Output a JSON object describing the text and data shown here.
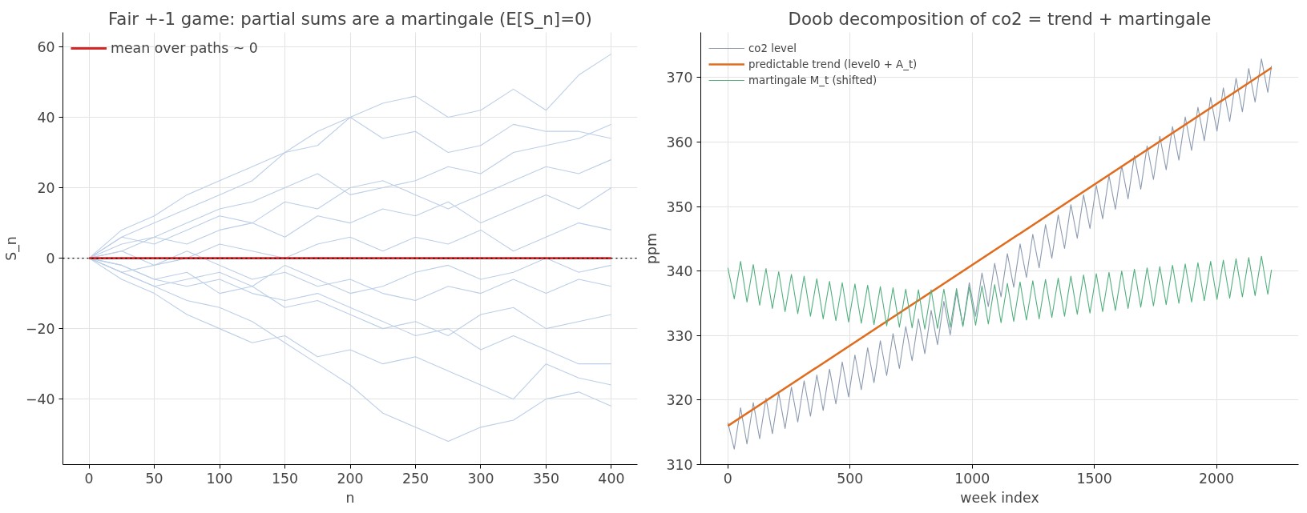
{
  "chart_data": [
    {
      "type": "line",
      "title": "Fair +-1 game: partial sums are a martingale (E[S_n]=0)",
      "xlabel": "n",
      "ylabel": "S_n",
      "x": [
        0,
        25,
        50,
        75,
        100,
        125,
        150,
        175,
        200,
        225,
        250,
        275,
        300,
        325,
        350,
        375,
        400
      ],
      "xlim": [
        -20,
        420
      ],
      "ylim": [
        -58.6,
        64.1
      ],
      "xticks": [
        0,
        50,
        100,
        150,
        200,
        250,
        300,
        350,
        400
      ],
      "yticks": [
        -40,
        -20,
        0,
        20,
        40,
        60
      ],
      "grid": true,
      "legend": "top left",
      "ref_lines": [
        {
          "axis": "y",
          "value": 0,
          "color": "#000000",
          "line_style": "dotted"
        }
      ],
      "series": [
        {
          "color": "#bccfe8",
          "values": [
            0,
            6,
            10,
            14,
            18,
            22,
            30,
            36,
            40,
            44,
            46,
            40,
            42,
            48,
            42,
            52,
            58
          ]
        },
        {
          "color": "#bccfe8",
          "values": [
            0,
            -4,
            -8,
            -12,
            -14,
            -18,
            -24,
            -30,
            -36,
            -44,
            -48,
            -52,
            -48,
            -46,
            -40,
            -38,
            -42
          ]
        },
        {
          "color": "#bccfe8",
          "values": [
            0,
            8,
            12,
            18,
            22,
            26,
            30,
            32,
            40,
            34,
            36,
            30,
            32,
            38,
            36,
            36,
            34
          ]
        },
        {
          "color": "#bccfe8",
          "values": [
            0,
            -6,
            -10,
            -16,
            -20,
            -24,
            -22,
            -28,
            -26,
            -30,
            -28,
            -32,
            -36,
            -40,
            -30,
            -34,
            -36
          ]
        },
        {
          "color": "#bccfe8",
          "values": [
            0,
            4,
            6,
            10,
            14,
            16,
            20,
            24,
            18,
            20,
            22,
            26,
            24,
            30,
            32,
            34,
            38
          ]
        },
        {
          "color": "#bccfe8",
          "values": [
            0,
            -2,
            -6,
            -4,
            -10,
            -8,
            -14,
            -12,
            -16,
            -20,
            -18,
            -22,
            -16,
            -14,
            -20,
            -18,
            -16
          ]
        },
        {
          "color": "#bccfe8",
          "values": [
            0,
            2,
            6,
            4,
            8,
            10,
            6,
            12,
            10,
            14,
            12,
            16,
            10,
            14,
            18,
            14,
            20
          ]
        },
        {
          "color": "#bccfe8",
          "values": [
            0,
            -4,
            -2,
            2,
            -2,
            -6,
            -4,
            -8,
            -6,
            -10,
            -12,
            -8,
            -10,
            -6,
            -10,
            -6,
            -8
          ]
        },
        {
          "color": "#bccfe8",
          "values": [
            0,
            2,
            -2,
            0,
            4,
            2,
            0,
            4,
            6,
            2,
            6,
            4,
            8,
            2,
            6,
            10,
            8
          ]
        },
        {
          "color": "#bccfe8",
          "values": [
            0,
            -2,
            -6,
            -8,
            -6,
            -10,
            -12,
            -10,
            -14,
            -18,
            -22,
            -20,
            -26,
            -22,
            -26,
            -30,
            -30
          ]
        },
        {
          "color": "#bccfe8",
          "values": [
            0,
            6,
            4,
            8,
            12,
            10,
            16,
            14,
            20,
            22,
            18,
            14,
            18,
            22,
            26,
            24,
            28
          ]
        },
        {
          "color": "#bccfe8",
          "values": [
            0,
            -4,
            -8,
            -6,
            -4,
            -8,
            -2,
            -6,
            -10,
            -8,
            -4,
            -2,
            -6,
            -4,
            0,
            -4,
            -2
          ]
        },
        {
          "name": "mean over paths ~ 0",
          "color": "#d62728",
          "values": [
            0,
            0,
            0,
            0,
            0,
            0,
            0,
            0,
            0,
            0,
            0,
            0,
            0,
            0,
            0,
            0,
            0
          ]
        }
      ]
    },
    {
      "type": "line",
      "title": "Doob decomposition of co2 = trend + martingale",
      "xlabel": "week index",
      "ylabel": "ppm",
      "xlim": [
        -111,
        2336
      ],
      "ylim": [
        310,
        377
      ],
      "xticks": [
        0,
        500,
        1000,
        1500,
        2000
      ],
      "yticks": [
        310,
        320,
        330,
        340,
        350,
        360,
        370
      ],
      "grid": true,
      "legend": "top left",
      "x": [
        0,
        26,
        52,
        78,
        104,
        130,
        156,
        182,
        208,
        234,
        260,
        286,
        312,
        338,
        364,
        390,
        416,
        442,
        468,
        494,
        520,
        546,
        572,
        598,
        624,
        650,
        676,
        702,
        728,
        754,
        780,
        806,
        832,
        858,
        884,
        910,
        936,
        962,
        988,
        1014,
        1040,
        1066,
        1092,
        1118,
        1144,
        1170,
        1196,
        1222,
        1248,
        1274,
        1300,
        1326,
        1352,
        1378,
        1404,
        1430,
        1456,
        1482,
        1508,
        1534,
        1560,
        1586,
        1612,
        1638,
        1664,
        1690,
        1716,
        1742,
        1768,
        1794,
        1820,
        1846,
        1872,
        1898,
        1924,
        1950,
        1976,
        2002,
        2028,
        2054,
        2080,
        2106,
        2132,
        2158,
        2184,
        2210,
        2225
      ],
      "series": [
        {
          "name": "co2 level",
          "color": "#8c9bb0",
          "values": [
            316.5,
            312.4,
            318.8,
            313.2,
            319.6,
            314.0,
            320.3,
            314.8,
            321.1,
            315.6,
            322.0,
            316.6,
            323.0,
            317.5,
            323.9,
            318.4,
            324.8,
            319.4,
            325.9,
            320.5,
            327.0,
            321.6,
            328.1,
            322.7,
            329.2,
            323.8,
            330.3,
            324.9,
            331.4,
            326.1,
            332.6,
            327.2,
            333.9,
            328.6,
            335.3,
            330.1,
            336.7,
            331.5,
            338.2,
            333.0,
            339.7,
            334.5,
            341.2,
            336.0,
            342.7,
            337.5,
            344.2,
            339.0,
            345.7,
            340.5,
            347.2,
            342.0,
            348.7,
            343.5,
            350.3,
            345.1,
            351.8,
            346.6,
            353.3,
            348.1,
            354.8,
            349.6,
            356.3,
            351.2,
            357.9,
            352.7,
            359.4,
            354.2,
            360.9,
            355.7,
            362.4,
            357.2,
            363.9,
            358.7,
            365.4,
            360.2,
            366.9,
            361.7,
            368.4,
            363.2,
            369.9,
            364.7,
            371.4,
            366.2,
            372.9,
            367.7,
            371.8
          ]
        },
        {
          "name": "predictable trend (level0 + A_t)",
          "color": "#e06c1e",
          "x": [
            0,
            2225
          ],
          "values": [
            316.0,
            371.5
          ]
        },
        {
          "name": "martingale M_t (shifted)",
          "color": "#52b07f",
          "values": [
            340.5,
            335.7,
            341.5,
            335.2,
            341.0,
            334.7,
            340.4,
            334.2,
            339.9,
            333.7,
            339.5,
            333.4,
            339.2,
            333.0,
            338.8,
            332.6,
            338.4,
            332.3,
            338.2,
            332.1,
            338.0,
            331.9,
            337.8,
            331.7,
            337.6,
            331.5,
            337.4,
            331.3,
            337.2,
            331.2,
            337.1,
            331.0,
            337.1,
            331.1,
            337.2,
            331.3,
            337.3,
            331.4,
            337.5,
            331.6,
            337.7,
            331.8,
            337.9,
            332.0,
            338.1,
            332.2,
            338.3,
            332.4,
            338.5,
            332.6,
            338.7,
            332.8,
            338.9,
            333.0,
            339.2,
            333.3,
            339.4,
            333.5,
            339.6,
            333.7,
            339.8,
            333.9,
            340.0,
            334.2,
            340.3,
            334.4,
            340.5,
            334.6,
            340.7,
            334.8,
            340.9,
            335.0,
            341.1,
            335.2,
            341.3,
            335.4,
            341.5,
            335.6,
            341.7,
            335.8,
            341.9,
            336.0,
            342.1,
            336.2,
            342.3,
            336.4,
            340.2
          ]
        }
      ]
    }
  ]
}
